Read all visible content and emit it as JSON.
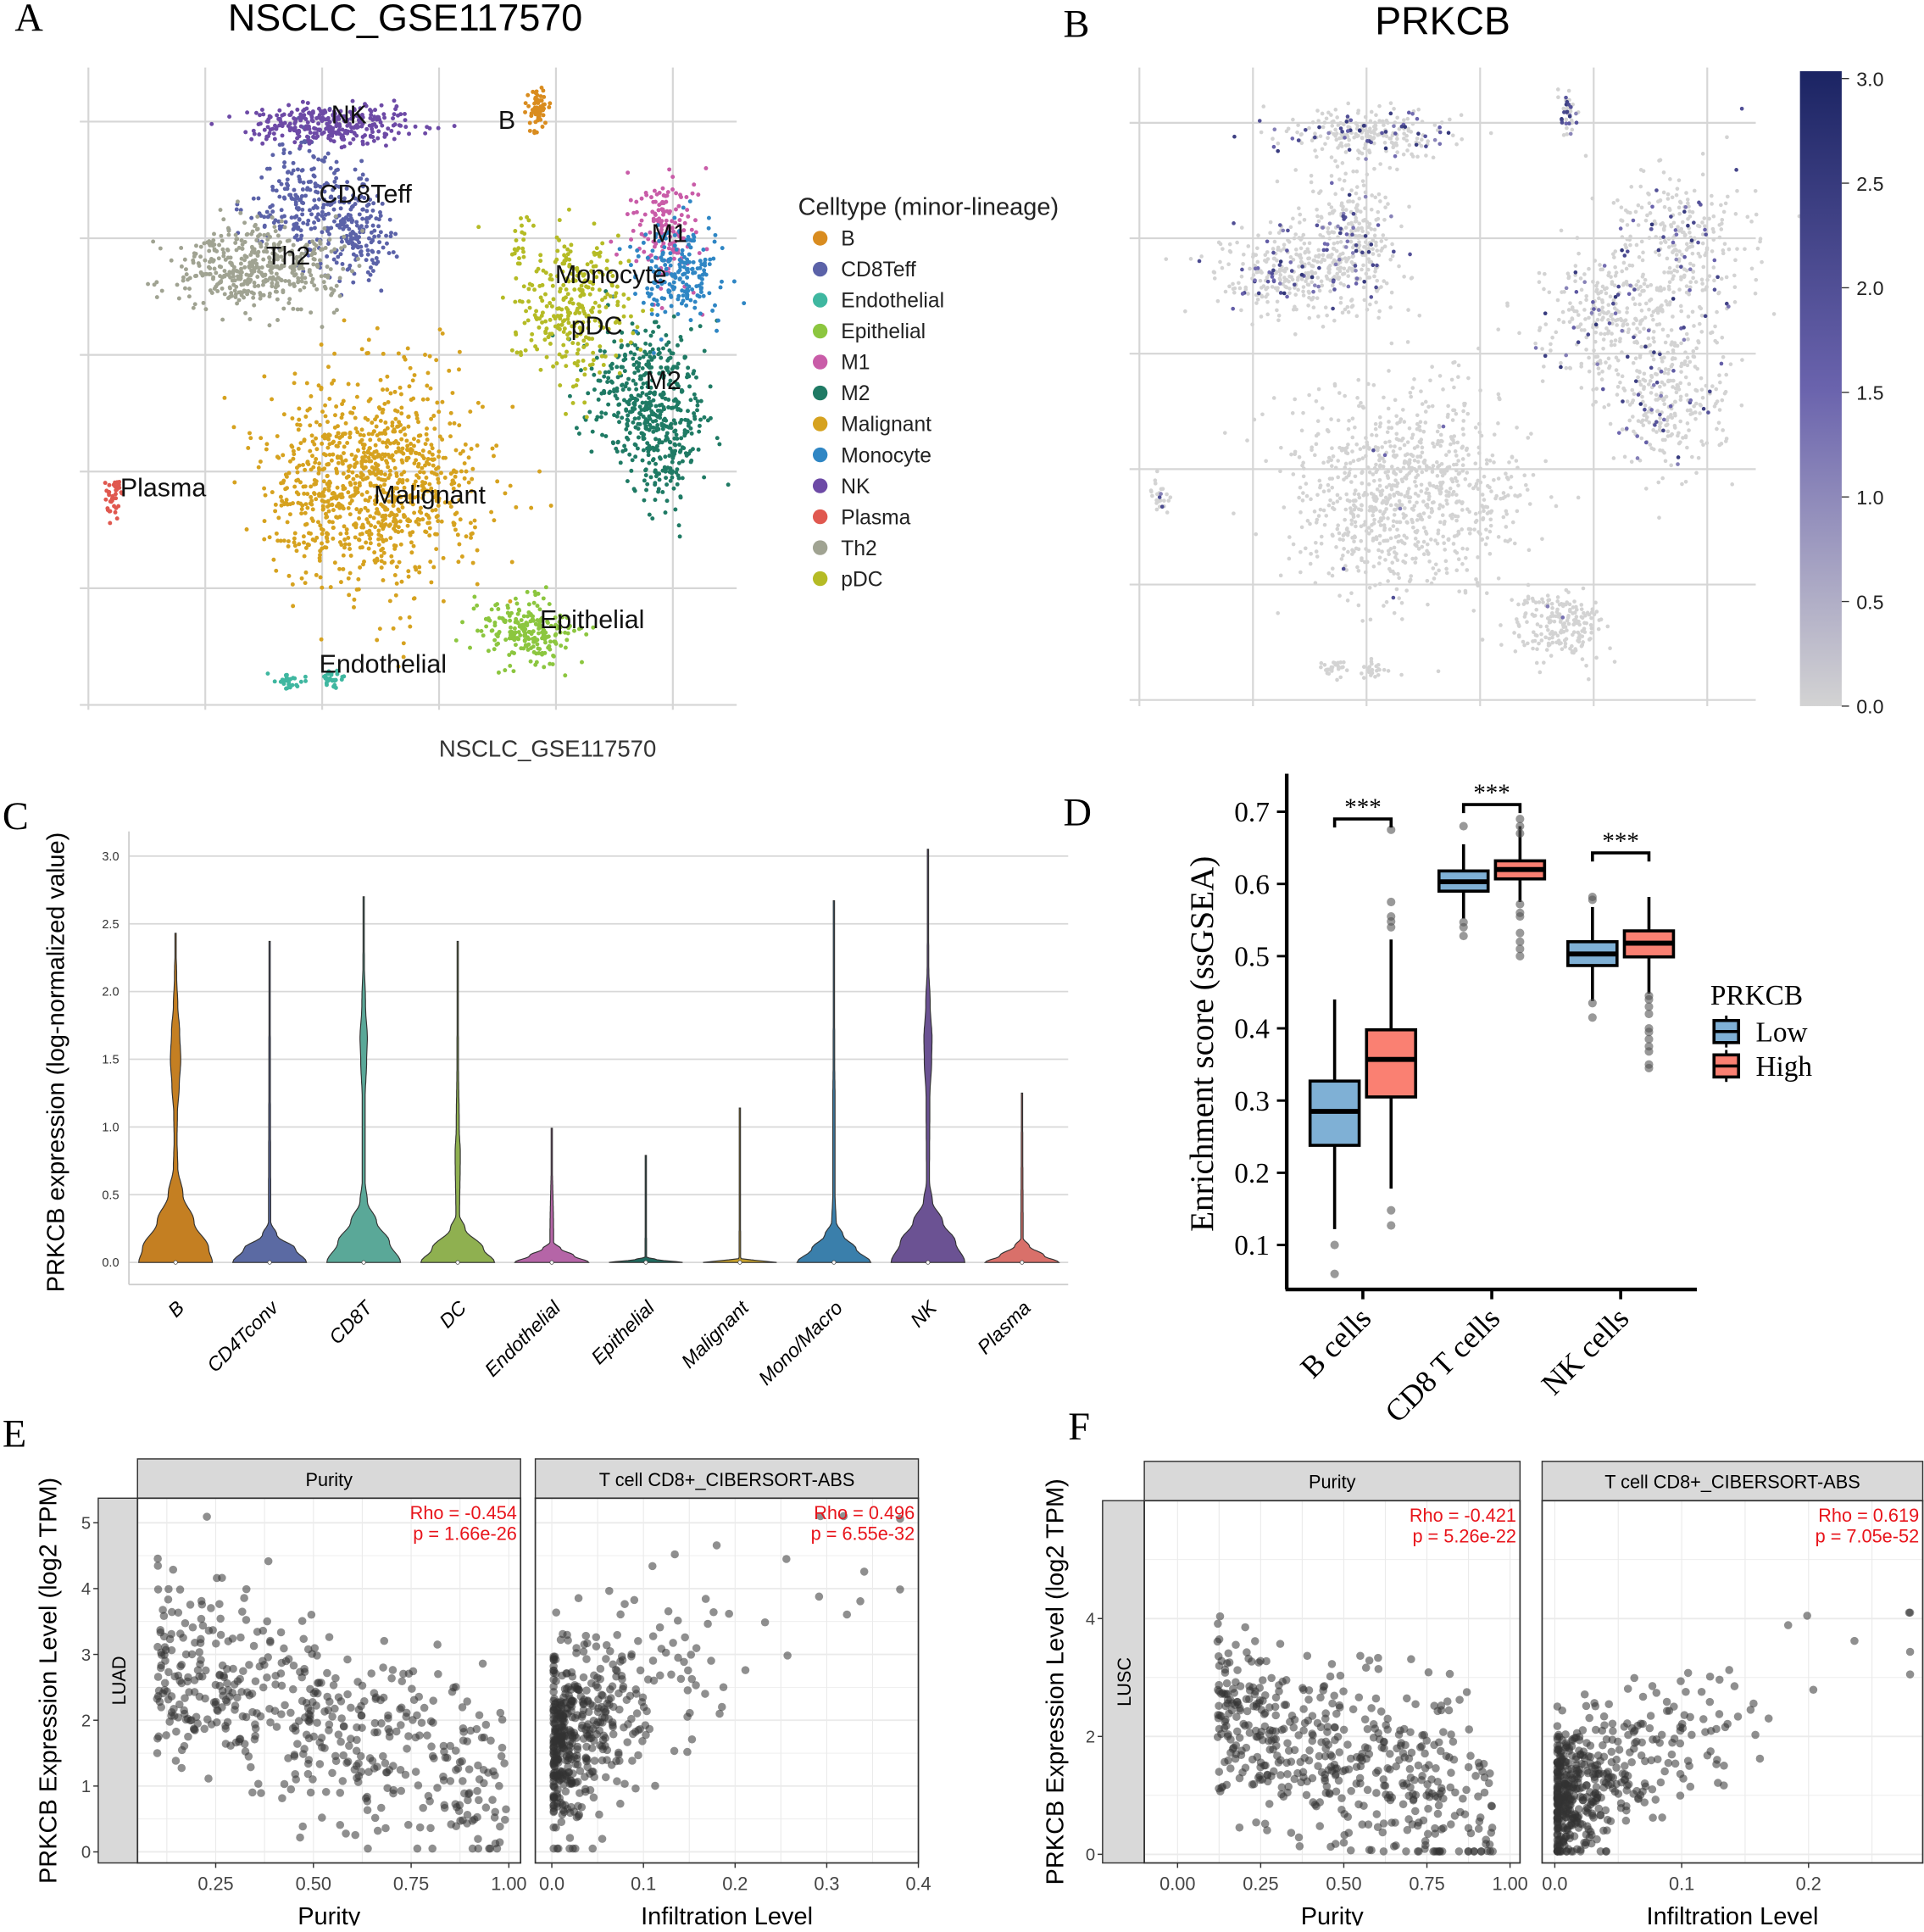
{
  "panel_letters": {
    "A": "A",
    "B": "B",
    "C": "C",
    "D": "D",
    "E": "E",
    "F": "F"
  },
  "chart_data": [
    {
      "id": "A",
      "type": "scatter",
      "title": "NSCLC_GSE117570",
      "xlabel": "NSCLC_GSE117570",
      "ylabel": "",
      "legend_title": "Celltype (minor-lineage)",
      "legend_position": "right",
      "note": "UMAP embedding; clusters given as centers/spreads in embedding units",
      "clusters": [
        {
          "name": "B",
          "color": "#d98c1f",
          "centers": [
            [
              3.84,
              5.07,
              0.05,
              0.1,
              60
            ]
          ],
          "label_at": [
            3.58,
            5.01
          ]
        },
        {
          "name": "CD8Teff",
          "color": "#5b62a8",
          "centers": [
            [
              1.85,
              4.35,
              0.25,
              0.25,
              250
            ],
            [
              2.3,
              4.0,
              0.15,
              0.2,
              150
            ]
          ],
          "label_at": [
            2.37,
            4.38
          ]
        },
        {
          "name": "Endothelial",
          "color": "#3fb7a0",
          "centers": [
            [
              1.72,
              0.2,
              0.06,
              0.04,
              30
            ],
            [
              2.1,
              0.22,
              0.06,
              0.04,
              30
            ]
          ],
          "label_at": [
            2.52,
            0.35
          ]
        },
        {
          "name": "Epithelial",
          "color": "#8cc63f",
          "centers": [
            [
              3.75,
              0.62,
              0.2,
              0.15,
              220
            ]
          ],
          "label_at": [
            4.31,
            0.73
          ]
        },
        {
          "name": "M1",
          "color": "#c95ca8",
          "centers": [
            [
              4.95,
              4.1,
              0.15,
              0.25,
              150
            ]
          ],
          "label_at": [
            4.97,
            4.04
          ]
        },
        {
          "name": "M2",
          "color": "#1f7a64",
          "centers": [
            [
              4.7,
              2.75,
              0.25,
              0.3,
              300
            ],
            [
              4.95,
              2.25,
              0.18,
              0.25,
              220
            ]
          ],
          "label_at": [
            4.92,
            2.78
          ]
        },
        {
          "name": "Malignant",
          "color": "#d6a21f",
          "centers": [
            [
              2.4,
              1.9,
              0.45,
              0.45,
              1000
            ]
          ],
          "label_at": [
            2.92,
            1.8
          ]
        },
        {
          "name": "Monocyte",
          "color": "#2f86c4",
          "centers": [
            [
              5.05,
              3.7,
              0.2,
              0.2,
              200
            ]
          ],
          "label_at": [
            4.47,
            3.69
          ]
        },
        {
          "name": "NK",
          "color": "#6d4aa6",
          "centers": [
            [
              2.1,
              4.97,
              0.35,
              0.08,
              300
            ]
          ],
          "label_at": [
            2.23,
            5.06
          ]
        },
        {
          "name": "Plasma",
          "color": "#e0584f",
          "centers": [
            [
              0.22,
              1.77,
              0.04,
              0.1,
              40
            ]
          ],
          "label_at": [
            0.64,
            1.86
          ]
        },
        {
          "name": "Th2",
          "color": "#a0a392",
          "centers": [
            [
              1.45,
              3.75,
              0.35,
              0.18,
              450
            ]
          ],
          "label_at": [
            1.71,
            3.85
          ]
        },
        {
          "name": "pDC",
          "color": "#b5bb25",
          "centers": [
            [
              4.15,
              3.4,
              0.25,
              0.3,
              300
            ],
            [
              3.7,
              4.0,
              0.05,
              0.15,
              20
            ]
          ],
          "label_at": [
            4.35,
            3.25
          ]
        }
      ]
    },
    {
      "id": "B",
      "type": "scatter",
      "title": "PRKCB",
      "colorbar": {
        "min": 0,
        "max": 3,
        "ticks": [
          "0.0",
          "0.5",
          "1.0",
          "1.5",
          "2.0",
          "2.5",
          "3.0"
        ],
        "low_color": "#d3d3d3",
        "mid_color": "#6a63ad",
        "high_color": "#1b2463"
      },
      "clusters": [
        {
          "centers": [
            [
              1.97,
              4.89,
              0.4,
              0.1,
              250
            ],
            [
              1.86,
              4.15,
              0.2,
              0.3,
              200
            ],
            [
              1.43,
              3.72,
              0.4,
              0.2,
              400
            ]
          ],
          "expressing_fraction": 0.18
        },
        {
          "centers": [
            [
              3.77,
              5.09,
              0.04,
              0.1,
              40
            ]
          ],
          "expressing_fraction": 0.5
        },
        {
          "centers": [
            [
              4.78,
              3.94,
              0.3,
              0.35,
              300
            ],
            [
              4.13,
              3.3,
              0.35,
              0.3,
              300
            ],
            [
              4.67,
              2.66,
              0.25,
              0.35,
              300
            ]
          ],
          "expressing_fraction": 0.12
        },
        {
          "centers": [
            [
              2.35,
              1.81,
              0.5,
              0.45,
              900
            ]
          ],
          "expressing_fraction": 0.01
        },
        {
          "centers": [
            [
              0.18,
              1.76,
              0.04,
              0.1,
              25
            ]
          ],
          "expressing_fraction": 0.2
        },
        {
          "centers": [
            [
              3.7,
              0.64,
              0.2,
              0.15,
              200
            ]
          ],
          "expressing_fraction": 0.01
        },
        {
          "centers": [
            [
              1.7,
              0.27,
              0.06,
              0.04,
              25
            ],
            [
              2.05,
              0.27,
              0.06,
              0.04,
              25
            ]
          ],
          "expressing_fraction": 0.0
        }
      ]
    },
    {
      "id": "C",
      "type": "violin",
      "ylabel": "PRKCB expression (log-normalized value)",
      "ylim": [
        -0.15,
        3.2
      ],
      "yticks": [
        "0.0",
        "0.5",
        "1.0",
        "1.5",
        "2.0",
        "2.5",
        "3.0"
      ],
      "categories": [
        "B",
        "CD4Tconv",
        "CD8T",
        "DC",
        "Endothelial",
        "Epithelial",
        "Malignant",
        "Mono/Macro",
        "NK",
        "Plasma"
      ],
      "colors": [
        "#c47f22",
        "#5b6aa3",
        "#5aa898",
        "#8fb050",
        "#b565a7",
        "#1f6a5e",
        "#c9a22b",
        "#3a7fab",
        "#6b5293",
        "#d9706a"
      ],
      "max": [
        2.43,
        2.37,
        2.7,
        2.37,
        0.99,
        0.79,
        1.14,
        2.67,
        3.05,
        1.25
      ],
      "density_profiles": [
        [
          [
            0,
            1
          ],
          [
            0.1,
            0.9
          ],
          [
            0.3,
            0.5
          ],
          [
            0.5,
            0.2
          ],
          [
            0.7,
            0.06
          ],
          [
            0.9,
            0.04
          ],
          [
            1.1,
            0.05
          ],
          [
            1.3,
            0.1
          ],
          [
            1.5,
            0.14
          ],
          [
            1.7,
            0.11
          ],
          [
            1.9,
            0.06
          ],
          [
            2.1,
            0.03
          ],
          [
            2.43,
            0
          ]
        ],
        [
          [
            0,
            1
          ],
          [
            0.1,
            0.7
          ],
          [
            0.2,
            0.2
          ],
          [
            0.3,
            0.03
          ],
          [
            1.5,
            0.02
          ],
          [
            2.37,
            0
          ]
        ],
        [
          [
            0,
            1
          ],
          [
            0.15,
            0.7
          ],
          [
            0.3,
            0.35
          ],
          [
            0.45,
            0.1
          ],
          [
            0.6,
            0.04
          ],
          [
            1.2,
            0.04
          ],
          [
            1.5,
            0.08
          ],
          [
            1.65,
            0.1
          ],
          [
            1.9,
            0.05
          ],
          [
            2.2,
            0.02
          ],
          [
            2.7,
            0
          ]
        ],
        [
          [
            0,
            1
          ],
          [
            0.1,
            0.7
          ],
          [
            0.25,
            0.2
          ],
          [
            0.35,
            0.05
          ],
          [
            0.8,
            0.07
          ],
          [
            1.0,
            0.04
          ],
          [
            1.5,
            0.02
          ],
          [
            2.37,
            0
          ]
        ],
        [
          [
            0,
            1
          ],
          [
            0.05,
            0.6
          ],
          [
            0.1,
            0.25
          ],
          [
            0.15,
            0.05
          ],
          [
            0.99,
            0
          ]
        ],
        [
          [
            0,
            1
          ],
          [
            0.02,
            0.3
          ],
          [
            0.04,
            0.02
          ],
          [
            0.79,
            0
          ]
        ],
        [
          [
            0,
            1
          ],
          [
            0.02,
            0.3
          ],
          [
            0.03,
            0.02
          ],
          [
            1.14,
            0
          ]
        ],
        [
          [
            0,
            1
          ],
          [
            0.1,
            0.6
          ],
          [
            0.2,
            0.25
          ],
          [
            0.3,
            0.06
          ],
          [
            0.5,
            0.03
          ],
          [
            1.2,
            0.03
          ],
          [
            1.5,
            0.02
          ],
          [
            2.67,
            0
          ]
        ],
        [
          [
            0,
            1
          ],
          [
            0.15,
            0.75
          ],
          [
            0.3,
            0.4
          ],
          [
            0.45,
            0.12
          ],
          [
            0.6,
            0.04
          ],
          [
            1.2,
            0.05
          ],
          [
            1.5,
            0.1
          ],
          [
            1.65,
            0.11
          ],
          [
            1.9,
            0.06
          ],
          [
            2.2,
            0.02
          ],
          [
            3.05,
            0
          ]
        ],
        [
          [
            0,
            1
          ],
          [
            0.05,
            0.6
          ],
          [
            0.12,
            0.2
          ],
          [
            0.18,
            0.03
          ],
          [
            0.9,
            0.02
          ],
          [
            1.25,
            0
          ]
        ]
      ]
    },
    {
      "id": "D",
      "type": "box",
      "ylabel": "Enrichment score (ssGSEA)",
      "ylim": [
        0.04,
        0.75
      ],
      "yticks": [
        "0.1",
        "0.2",
        "0.3",
        "0.4",
        "0.5",
        "0.6",
        "0.7"
      ],
      "categories": [
        "B cells",
        "CD8 T cells",
        "NK cells"
      ],
      "legend": {
        "title": "PRKCB",
        "items": [
          "Low",
          "High"
        ],
        "colors": [
          "#7fb0d5",
          "#fa8072"
        ],
        "position": "right"
      },
      "significance": [
        "***",
        "***",
        "***"
      ],
      "bracket_y": [
        0.69,
        0.71,
        0.643
      ],
      "series": [
        {
          "name": "Low",
          "boxes": [
            {
              "q1": 0.238,
              "median": 0.285,
              "q3": 0.327,
              "whisker_low": 0.122,
              "whisker_high": 0.44,
              "outliers": [
                0.1,
                0.06
              ]
            },
            {
              "q1": 0.59,
              "median": 0.603,
              "q3": 0.618,
              "whisker_low": 0.552,
              "whisker_high": 0.655,
              "outliers": [
                0.68,
                0.547,
                0.54,
                0.528
              ]
            },
            {
              "q1": 0.487,
              "median": 0.503,
              "q3": 0.52,
              "whisker_low": 0.438,
              "whisker_high": 0.568,
              "outliers": [
                0.582,
                0.578,
                0.435,
                0.415
              ]
            }
          ]
        },
        {
          "name": "High",
          "boxes": [
            {
              "q1": 0.305,
              "median": 0.357,
              "q3": 0.398,
              "whisker_low": 0.178,
              "whisker_high": 0.523,
              "outliers": [
                0.675,
                0.575,
                0.555,
                0.548,
                0.54,
                0.148,
                0.127
              ]
            },
            {
              "q1": 0.607,
              "median": 0.62,
              "q3": 0.632,
              "whisker_low": 0.575,
              "whisker_high": 0.68,
              "outliers": [
                0.69,
                0.68,
                0.67,
                0.572,
                0.56,
                0.555,
                0.532,
                0.52,
                0.51,
                0.5
              ]
            },
            {
              "q1": 0.499,
              "median": 0.518,
              "q3": 0.535,
              "whisker_low": 0.448,
              "whisker_high": 0.582,
              "outliers": [
                0.445,
                0.44,
                0.43,
                0.42,
                0.4,
                0.395,
                0.385,
                0.375,
                0.368,
                0.35,
                0.345
              ]
            }
          ]
        }
      ]
    },
    {
      "id": "E",
      "type": "scatter",
      "ylabel": "PRKCB Expression Level (log2 TPM)",
      "row_strip": "LUAD",
      "yticks": [
        "0",
        "1",
        "2",
        "3",
        "4",
        "5"
      ],
      "facets": [
        {
          "strip": "Purity",
          "xlabel": "Purity",
          "rho": "Rho = -0.454",
          "p": "p = 1.66e-26",
          "xticks": [
            "0.25",
            "0.50",
            "0.75",
            "1.00"
          ],
          "xlim": [
            0.05,
            1.03
          ],
          "model": {
            "n": 500,
            "x_dist": "uniform",
            "x_range": [
              0.1,
              1.0
            ],
            "intercept": 3.2,
            "slope": -2.3,
            "noise_sd": 0.75
          }
        },
        {
          "strip": "T cell CD8+_CIBERSORT-ABS",
          "xlabel": "Infiltration Level",
          "rho": "Rho = 0.496",
          "p": "p = 6.55e-32",
          "xticks": [
            "0.0",
            "0.1",
            "0.2",
            "0.3",
            "0.4"
          ],
          "xlim": [
            -0.018,
            0.4
          ],
          "model": {
            "n": 500,
            "x_dist": "exponential",
            "x_mean": 0.06,
            "x_max": 0.38,
            "intercept": 1.5,
            "slope": 9,
            "noise_sd": 0.7
          }
        }
      ]
    },
    {
      "id": "F",
      "type": "scatter",
      "ylabel": "PRKCB Expression Level (log2 TPM)",
      "row_strip": "LUSC",
      "yticks": [
        "0",
        "2",
        "4"
      ],
      "facets": [
        {
          "strip": "Purity",
          "xlabel": "Purity",
          "rho": "Rho = -0.421",
          "p": "p = 5.26e-22",
          "xticks": [
            "0.00",
            "0.25",
            "0.50",
            "0.75",
            "1.00"
          ],
          "xlim": [
            -0.1,
            1.03
          ],
          "model": {
            "n": 500,
            "x_dist": "uniform",
            "x_range": [
              0.12,
              0.95
            ],
            "intercept": 2.6,
            "slope": -1.9,
            "noise_sd": 0.8
          }
        },
        {
          "strip": "T cell CD8+_CIBERSORT-ABS",
          "xlabel": "Infiltration Level",
          "rho": "Rho = 0.619",
          "p": "p = 7.05e-52",
          "xticks": [
            "0.0",
            "0.1",
            "0.2"
          ],
          "xlim": [
            -0.01,
            0.29
          ],
          "model": {
            "n": 500,
            "x_dist": "exponential",
            "x_mean": 0.045,
            "x_max": 0.28,
            "intercept": 0.9,
            "slope": 10,
            "noise_sd": 0.6
          }
        }
      ]
    }
  ]
}
